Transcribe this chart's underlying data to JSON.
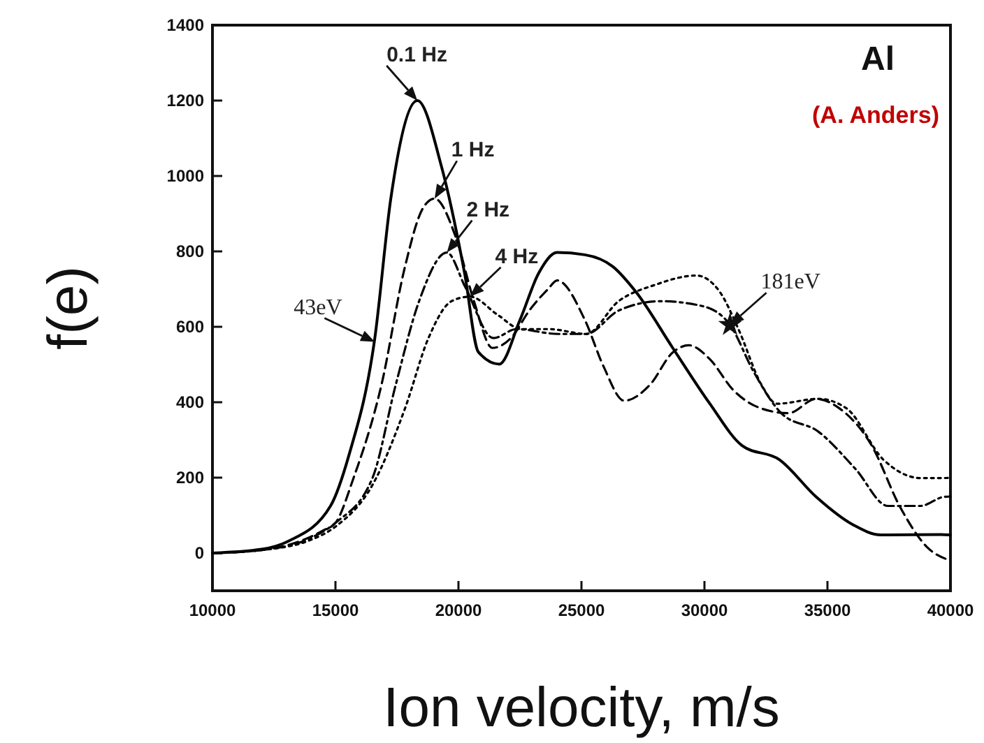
{
  "chart_data": {
    "type": "line",
    "xlabel": "Ion velocity, m/s",
    "ylabel": "f(e)",
    "xlim": [
      10000,
      40000
    ],
    "xticks": [
      10000,
      15000,
      20000,
      25000,
      30000,
      35000,
      40000
    ],
    "ylim": [
      -100,
      1400
    ],
    "yticks": [
      0,
      200,
      400,
      600,
      800,
      1000,
      1200,
      1400
    ],
    "grid": false,
    "marker": "none",
    "annotations": [
      "Al",
      "(A. Anders)",
      {
        "text": "0.1 Hz",
        "x": 18330,
        "y": 1200
      },
      {
        "text": "1 Hz",
        "x": 19030,
        "y": 940
      },
      {
        "text": "2 Hz",
        "x": 19530,
        "y": 797
      },
      {
        "text": "4 Hz",
        "x": 20470,
        "y": 680
      },
      {
        "text": "43eV",
        "x": 16600,
        "y": 560
      },
      {
        "text": "181eV",
        "x": 31040,
        "y": 605
      }
    ],
    "series": [
      {
        "color": "#000000",
        "line_style": "solid",
        "x": [
          10000,
          12000,
          13100,
          14800,
          15550,
          16600,
          17250,
          18330,
          19310,
          20250,
          20810,
          21660,
          22500,
          23260,
          24010,
          25140,
          26270,
          27210,
          28710,
          30220,
          31530,
          33040,
          34540,
          36040,
          37170,
          39620,
          40000
        ],
        "values": [
          0,
          10,
          32,
          125,
          260,
          570,
          940,
          1200,
          1025,
          742,
          533,
          501,
          618,
          742,
          797,
          791,
          760,
          693,
          544,
          396,
          285,
          248,
          149,
          75,
          48,
          49,
          48
        ]
      },
      {
        "color": "#000000",
        "line_style": "dashed",
        "x": [
          10000,
          12000,
          13000,
          14500,
          15000,
          15740,
          16870,
          17810,
          18560,
          19030,
          19880,
          20630,
          21380,
          22130,
          22890,
          23640,
          24010,
          25140,
          25890,
          26740,
          27780,
          28710,
          29370,
          30220,
          31160,
          32290,
          33420,
          34540,
          35480,
          36800,
          37930,
          39060,
          40000
        ],
        "values": [
          0,
          8,
          20,
          60,
          80,
          200,
          446,
          755,
          915,
          940,
          840,
          668,
          544,
          570,
          644,
          700,
          723,
          618,
          496,
          404,
          446,
          532,
          551,
          514,
          433,
          384,
          371,
          409,
          384,
          285,
          125,
          15,
          -20
        ]
      },
      {
        "color": "#000000",
        "line_style": "dashdot",
        "x": [
          10000,
          12000,
          14000,
          15000,
          16510,
          17450,
          18400,
          19530,
          20280,
          21420,
          22360,
          24060,
          25190,
          26510,
          28210,
          29910,
          31040,
          31990,
          33120,
          34630,
          36140,
          37460,
          38780,
          39730,
          40000
        ],
        "values": [
          0,
          8,
          40,
          80,
          200,
          446,
          668,
          797,
          705,
          570,
          594,
          581,
          581,
          643,
          668,
          655,
          605,
          482,
          371,
          322,
          223,
          125,
          125,
          149,
          150
        ]
      },
      {
        "color": "#000000",
        "line_style": "dotted",
        "x": [
          10000,
          12000,
          14000,
          15000,
          16500,
          17830,
          18780,
          19720,
          20470,
          21610,
          22550,
          23680,
          25190,
          26510,
          27980,
          29670,
          30620,
          31380,
          32320,
          32950,
          34630,
          35770,
          37270,
          38780,
          39730,
          40000
        ],
        "values": [
          0,
          8,
          35,
          70,
          180,
          384,
          570,
          668,
          680,
          631,
          594,
          594,
          581,
          668,
          711,
          736,
          693,
          594,
          446,
          396,
          409,
          384,
          248,
          199,
          199,
          200
        ]
      }
    ]
  }
}
